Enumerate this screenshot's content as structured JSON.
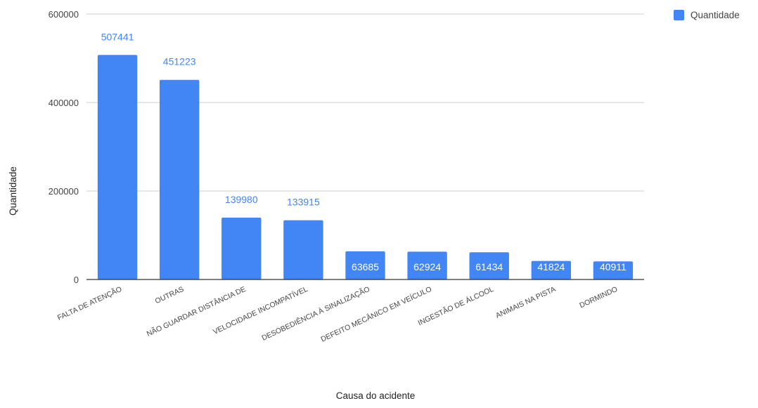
{
  "chart_data": {
    "type": "bar",
    "categories": [
      "FALTA DE ATENÇÃO",
      "OUTRAS",
      "NÃO GUARDAR DISTÂNCIA DE",
      "VELOCIDADE INCOMPATÍVEL",
      "DESOBEDIÊNCIA À SINALIZAÇÃO",
      "DEFEITO MECÂNICO EM VEÍCULO",
      "INGESTÃO DE ÁLCOOL",
      "ANIMAIS NA PISTA",
      "DORMINDO"
    ],
    "series": [
      {
        "name": "Quantidade",
        "values": [
          507441,
          451223,
          139980,
          133915,
          63685,
          62924,
          61434,
          41824,
          40911
        ],
        "color": "#4285f4"
      }
    ],
    "xlabel": "Causa do acidente",
    "ylabel": "Quantidade",
    "ylim": [
      0,
      600000
    ],
    "yticks": [
      0,
      200000,
      400000,
      600000
    ],
    "grid": true,
    "legend_position": "top-right",
    "data_labels": [
      "507441",
      "451223",
      "139980",
      "133915",
      "63685",
      "62924",
      "61434",
      "41824",
      "40911"
    ]
  },
  "colors": {
    "bar": "#4285f4",
    "label_outside": "#4285f4",
    "label_inside": "#ffffff",
    "grid": "#cccccc",
    "axis": "#333333"
  }
}
